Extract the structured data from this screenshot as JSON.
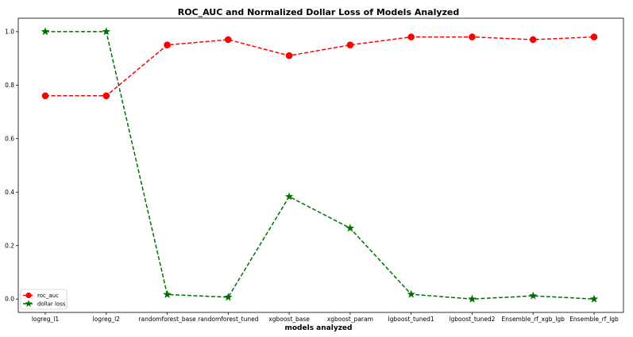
{
  "chart_data": {
    "type": "line",
    "title": "ROC_AUC and Normalized Dollar Loss of Models Analyzed",
    "xlabel": "models analyzed",
    "ylabel": "",
    "categories": [
      "logreg_l1",
      "logreg_l2",
      "randomforest_base",
      "randomforest_tuned",
      "xgboost_base",
      "xgboost_param",
      "lgboost_tuned1",
      "lgboost_tuned2",
      "Ensemble_rf_xgb_lgb",
      "Ensemble_rf_lgb"
    ],
    "ylim": [
      -0.05,
      1.05
    ],
    "yticks": [
      "0.0",
      "0.2",
      "0.4",
      "0.6",
      "0.8",
      "1.0"
    ],
    "grid": false,
    "legend_position": "bottom-left",
    "series": [
      {
        "name": "roc_auc",
        "color": "#ff0000",
        "marker": "circle",
        "linestyle": "dashed",
        "values": [
          0.76,
          0.76,
          0.95,
          0.97,
          0.91,
          0.95,
          0.98,
          0.98,
          0.97,
          0.98
        ]
      },
      {
        "name": "dollar loss",
        "color": "#007000",
        "marker": "star",
        "linestyle": "dashed",
        "values": [
          1.0,
          1.0,
          0.017,
          0.007,
          0.383,
          0.265,
          0.018,
          0.0,
          0.012,
          0.0
        ]
      }
    ]
  }
}
